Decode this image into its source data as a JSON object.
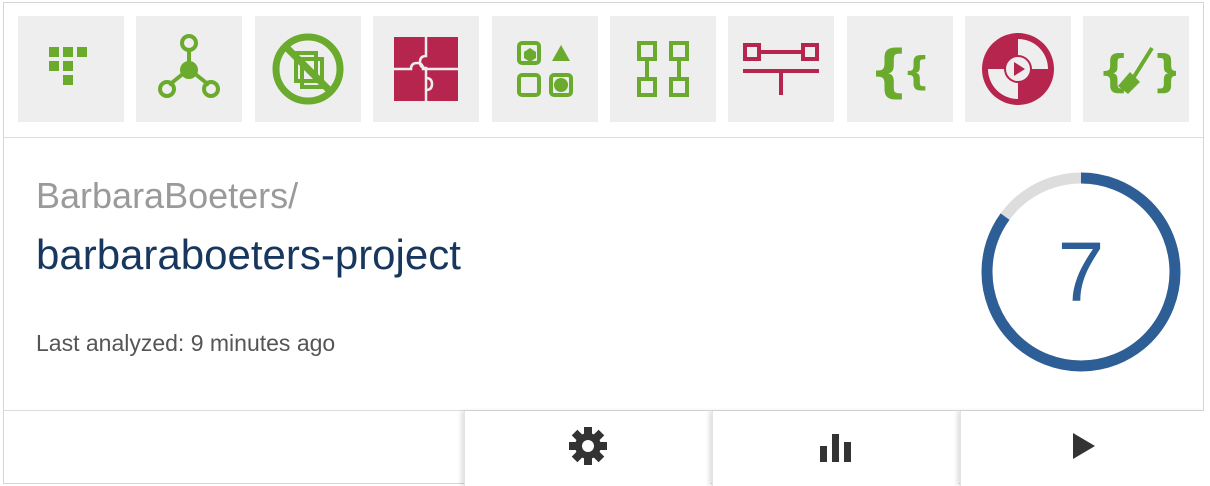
{
  "toolbar": {
    "icons": [
      {
        "name": "dot-grid-icon",
        "color": "#6aab2e"
      },
      {
        "name": "node-graph-icon",
        "color": "#6aab2e"
      },
      {
        "name": "no-copy-icon",
        "color": "#6aab2e"
      },
      {
        "name": "puzzle-icon",
        "color": "#b5254d"
      },
      {
        "name": "shapes-icon",
        "color": "#6aab2e"
      },
      {
        "name": "boxes-icon",
        "color": "#6aab2e"
      },
      {
        "name": "connector-icon",
        "color": "#b5254d"
      },
      {
        "name": "braces-icon",
        "color": "#6aab2e"
      },
      {
        "name": "play-badge-icon",
        "color": "#b5254d"
      },
      {
        "name": "code-cleanup-icon",
        "color": "#6aab2e"
      }
    ]
  },
  "project": {
    "owner": "BarbaraBoeters/",
    "name": "barbaraboeters-project",
    "last_analyzed": "Last analyzed: 9 minutes ago"
  },
  "score": {
    "value": "7",
    "fraction": 0.85,
    "ring_color": "#2e5e96",
    "track_color": "#dddddd"
  },
  "actions": {
    "settings": "settings",
    "stats": "statistics",
    "run": "run"
  }
}
